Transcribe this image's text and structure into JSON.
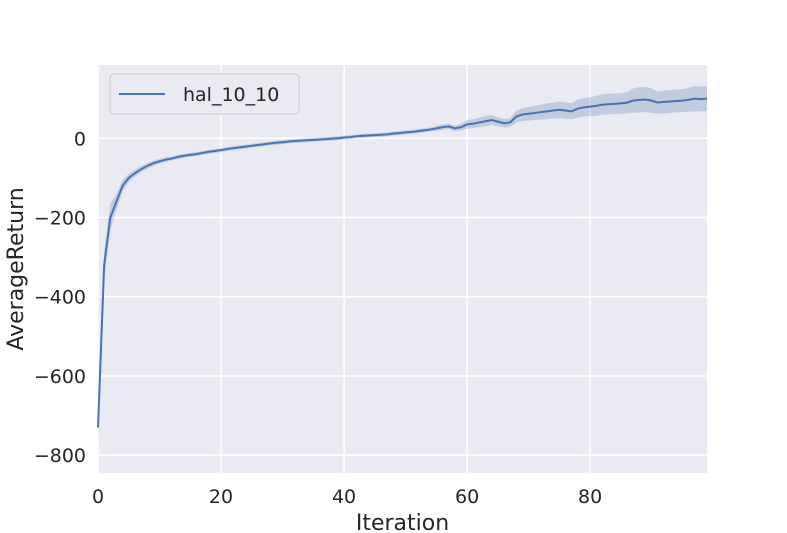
{
  "chart_data": {
    "type": "line",
    "title": "",
    "xlabel": "Iteration",
    "ylabel": "AverageReturn",
    "xlim": [
      0,
      99
    ],
    "ylim": [
      -845,
      185
    ],
    "xticks": [
      0,
      20,
      40,
      60,
      80
    ],
    "yticks": [
      -800,
      -600,
      -400,
      -200,
      0
    ],
    "xtick_labels": [
      "0",
      "20",
      "40",
      "60",
      "80"
    ],
    "ytick_labels": [
      "−800",
      "−600",
      "−400",
      "−200",
      "0"
    ],
    "grid": true,
    "legend_position": "top-left",
    "colors": {
      "line": "#4c72b0",
      "band": "#4c72b0",
      "background": "#eaeaf2",
      "grid": "#ffffff"
    },
    "series": [
      {
        "name": "hal_10_10",
        "x": [
          0,
          1,
          2,
          3,
          4,
          5,
          6,
          7,
          8,
          9,
          10,
          11,
          12,
          13,
          14,
          15,
          16,
          17,
          18,
          19,
          20,
          21,
          22,
          23,
          24,
          25,
          26,
          27,
          28,
          29,
          30,
          31,
          32,
          33,
          34,
          35,
          36,
          37,
          38,
          39,
          40,
          41,
          42,
          43,
          44,
          45,
          46,
          47,
          48,
          49,
          50,
          51,
          52,
          53,
          54,
          55,
          56,
          57,
          58,
          59,
          60,
          61,
          62,
          63,
          64,
          65,
          66,
          67,
          68,
          69,
          70,
          71,
          72,
          73,
          74,
          75,
          76,
          77,
          78,
          79,
          80,
          81,
          82,
          83,
          84,
          85,
          86,
          87,
          88,
          89,
          90,
          91,
          92,
          93,
          94,
          95,
          96,
          97,
          98,
          99
        ],
        "values": [
          -730,
          -320,
          -200,
          -160,
          -120,
          -100,
          -88,
          -78,
          -70,
          -63,
          -58,
          -54,
          -51,
          -47,
          -44,
          -42,
          -40,
          -37,
          -34,
          -32,
          -30,
          -27,
          -25,
          -23,
          -21,
          -19,
          -17,
          -15,
          -13,
          -11,
          -10,
          -8,
          -7,
          -6,
          -5,
          -4,
          -3,
          -2,
          -1,
          0,
          2,
          3,
          5,
          6,
          7,
          8,
          9,
          10,
          12,
          13,
          15,
          16,
          18,
          20,
          22,
          25,
          28,
          30,
          25,
          28,
          35,
          37,
          40,
          43,
          46,
          42,
          38,
          40,
          55,
          60,
          62,
          64,
          66,
          68,
          70,
          72,
          70,
          68,
          75,
          78,
          80,
          82,
          85,
          86,
          87,
          88,
          90,
          95,
          97,
          98,
          95,
          90,
          92,
          93,
          94,
          95,
          97,
          100,
          99,
          100
        ],
        "lower": [
          -760,
          -355,
          -235,
          -180,
          -135,
          -110,
          -97,
          -86,
          -77,
          -70,
          -64,
          -60,
          -56,
          -52,
          -49,
          -47,
          -45,
          -42,
          -39,
          -37,
          -35,
          -32,
          -30,
          -28,
          -26,
          -24,
          -22,
          -20,
          -18,
          -16,
          -15,
          -13,
          -12,
          -11,
          -10,
          -9,
          -8,
          -7,
          -6,
          -5,
          -3,
          -2,
          0,
          1,
          2,
          3,
          4,
          5,
          7,
          8,
          10,
          11,
          13,
          15,
          17,
          19,
          21,
          23,
          18,
          20,
          24,
          26,
          28,
          30,
          33,
          31,
          27,
          29,
          40,
          44,
          45,
          46,
          47,
          48,
          50,
          51,
          49,
          48,
          52,
          55,
          56,
          57,
          59,
          60,
          61,
          62,
          63,
          64,
          65,
          66,
          64,
          62,
          63,
          64,
          65,
          66,
          67,
          68,
          68,
          68
        ],
        "upper": [
          -700,
          -285,
          -165,
          -140,
          -105,
          -90,
          -79,
          -70,
          -63,
          -56,
          -52,
          -48,
          -46,
          -42,
          -39,
          -37,
          -35,
          -32,
          -29,
          -27,
          -25,
          -22,
          -20,
          -18,
          -16,
          -14,
          -12,
          -10,
          -8,
          -6,
          -5,
          -3,
          -2,
          -1,
          0,
          1,
          2,
          3,
          4,
          5,
          7,
          8,
          10,
          11,
          12,
          13,
          14,
          15,
          17,
          18,
          20,
          21,
          23,
          25,
          27,
          31,
          35,
          37,
          32,
          36,
          46,
          48,
          52,
          56,
          59,
          53,
          49,
          51,
          70,
          76,
          79,
          82,
          85,
          88,
          90,
          93,
          91,
          88,
          98,
          101,
          104,
          107,
          111,
          112,
          113,
          114,
          117,
          126,
          129,
          130,
          126,
          118,
          121,
          122,
          123,
          124,
          127,
          132,
          130,
          132
        ]
      }
    ]
  }
}
